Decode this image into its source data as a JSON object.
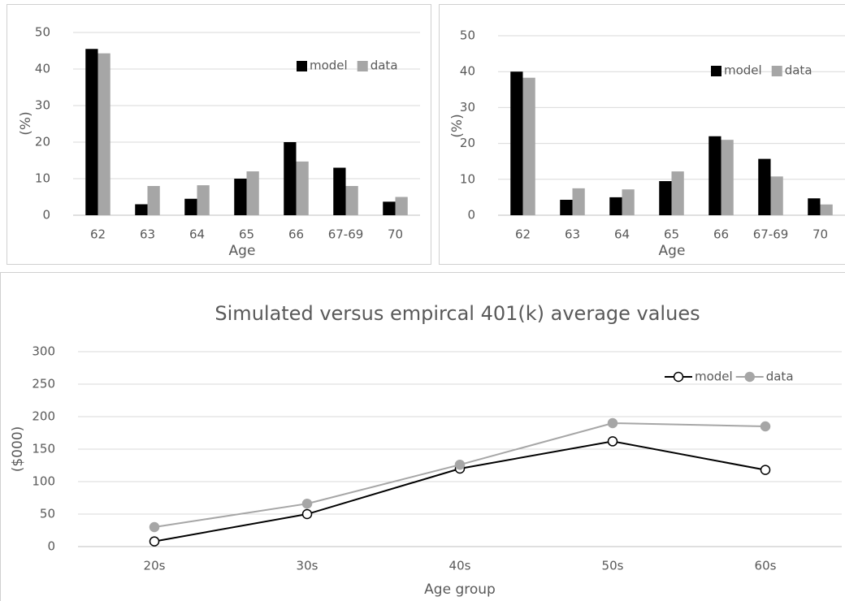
{
  "chart_data": [
    {
      "type": "bar",
      "y_label": "(%)",
      "x_label": "Age",
      "categories": [
        "62",
        "63",
        "64",
        "65",
        "66",
        "67-69",
        "70"
      ],
      "series": [
        {
          "name": "model",
          "color": "#000000",
          "values": [
            45.5,
            3,
            4.5,
            10,
            20,
            13,
            3.7
          ]
        },
        {
          "name": "data",
          "color": "#a6a6a6",
          "values": [
            44.3,
            8,
            8.2,
            12,
            14.7,
            8,
            5
          ]
        }
      ],
      "ylim": [
        0,
        50
      ],
      "yticks": [
        0,
        10,
        20,
        30,
        40,
        50
      ],
      "grid": true,
      "legend": "top-right"
    },
    {
      "type": "bar",
      "y_label": "(%)",
      "x_label": "Age",
      "categories": [
        "62",
        "63",
        "64",
        "65",
        "66",
        "67-69",
        "70"
      ],
      "series": [
        {
          "name": "model",
          "color": "#000000",
          "values": [
            40,
            4.3,
            5,
            9.5,
            22,
            15.7,
            4.7
          ]
        },
        {
          "name": "data",
          "color": "#a6a6a6",
          "values": [
            38.3,
            7.5,
            7.2,
            12.2,
            21,
            10.8,
            3
          ]
        }
      ],
      "ylim": [
        0,
        50
      ],
      "yticks": [
        0,
        10,
        20,
        30,
        40,
        50
      ],
      "grid": true,
      "legend": "top-right"
    },
    {
      "type": "line",
      "title": "Simulated versus empircal 401(k) average values",
      "y_label": "($000)",
      "x_label": "Age group",
      "categories": [
        "20s",
        "30s",
        "40s",
        "50s",
        "60s"
      ],
      "series": [
        {
          "name": "model",
          "color": "#000000",
          "marker": "open",
          "values": [
            8,
            50,
            120,
            162,
            118
          ]
        },
        {
          "name": "data",
          "color": "#a6a6a6",
          "marker": "filled",
          "values": [
            30,
            66,
            126,
            190,
            185
          ]
        }
      ],
      "ylim": [
        0,
        300
      ],
      "yticks": [
        0,
        50,
        100,
        150,
        200,
        250,
        300
      ],
      "grid": true,
      "legend": "top-right"
    }
  ]
}
